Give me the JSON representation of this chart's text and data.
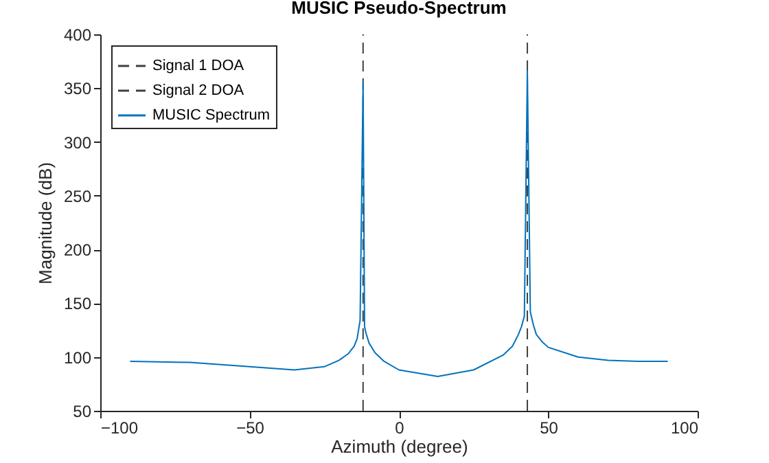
{
  "chart_data": {
    "type": "line",
    "title": "MUSIC Pseudo-Spectrum",
    "xlabel": "Azimuth (degree)",
    "ylabel": "Magnitude (dB)",
    "xlim": [
      -100,
      100
    ],
    "xticks": [
      -100,
      -50,
      0,
      50,
      100
    ],
    "ylim": [
      50,
      400
    ],
    "yticks": [
      50,
      100,
      150,
      200,
      250,
      300,
      350,
      400
    ],
    "grid": false,
    "legend": "top left",
    "series": [
      {
        "name": "Signal 1 DOA",
        "color": "#404040",
        "line_style": "dashed",
        "x": [
          -12,
          -12
        ],
        "values": [
          50,
          400
        ]
      },
      {
        "name": "Signal 2 DOA",
        "color": "#404040",
        "line_style": "dashed",
        "x": [
          43,
          43
        ],
        "values": [
          50,
          400
        ]
      },
      {
        "name": "MUSIC Spectrum",
        "color": "#0072bd",
        "line_style": "solid",
        "x": [
          -90,
          -70,
          -50,
          -35,
          -25,
          -20,
          -17,
          -15,
          -14,
          -13,
          -12,
          -11.5,
          -11,
          -10,
          -8,
          -5,
          0,
          13,
          25,
          35,
          38,
          40,
          41,
          42,
          43,
          44,
          45,
          46,
          48,
          50,
          60,
          70,
          80,
          90
        ],
        "values": [
          96,
          95,
          91,
          88,
          91,
          97,
          103,
          110,
          117,
          134,
          355,
          128,
          122,
          113,
          104,
          96,
          88,
          82,
          88,
          102,
          110,
          121,
          128,
          138,
          366,
          142,
          130,
          121,
          114,
          109,
          100,
          97,
          96,
          96
        ]
      }
    ]
  }
}
